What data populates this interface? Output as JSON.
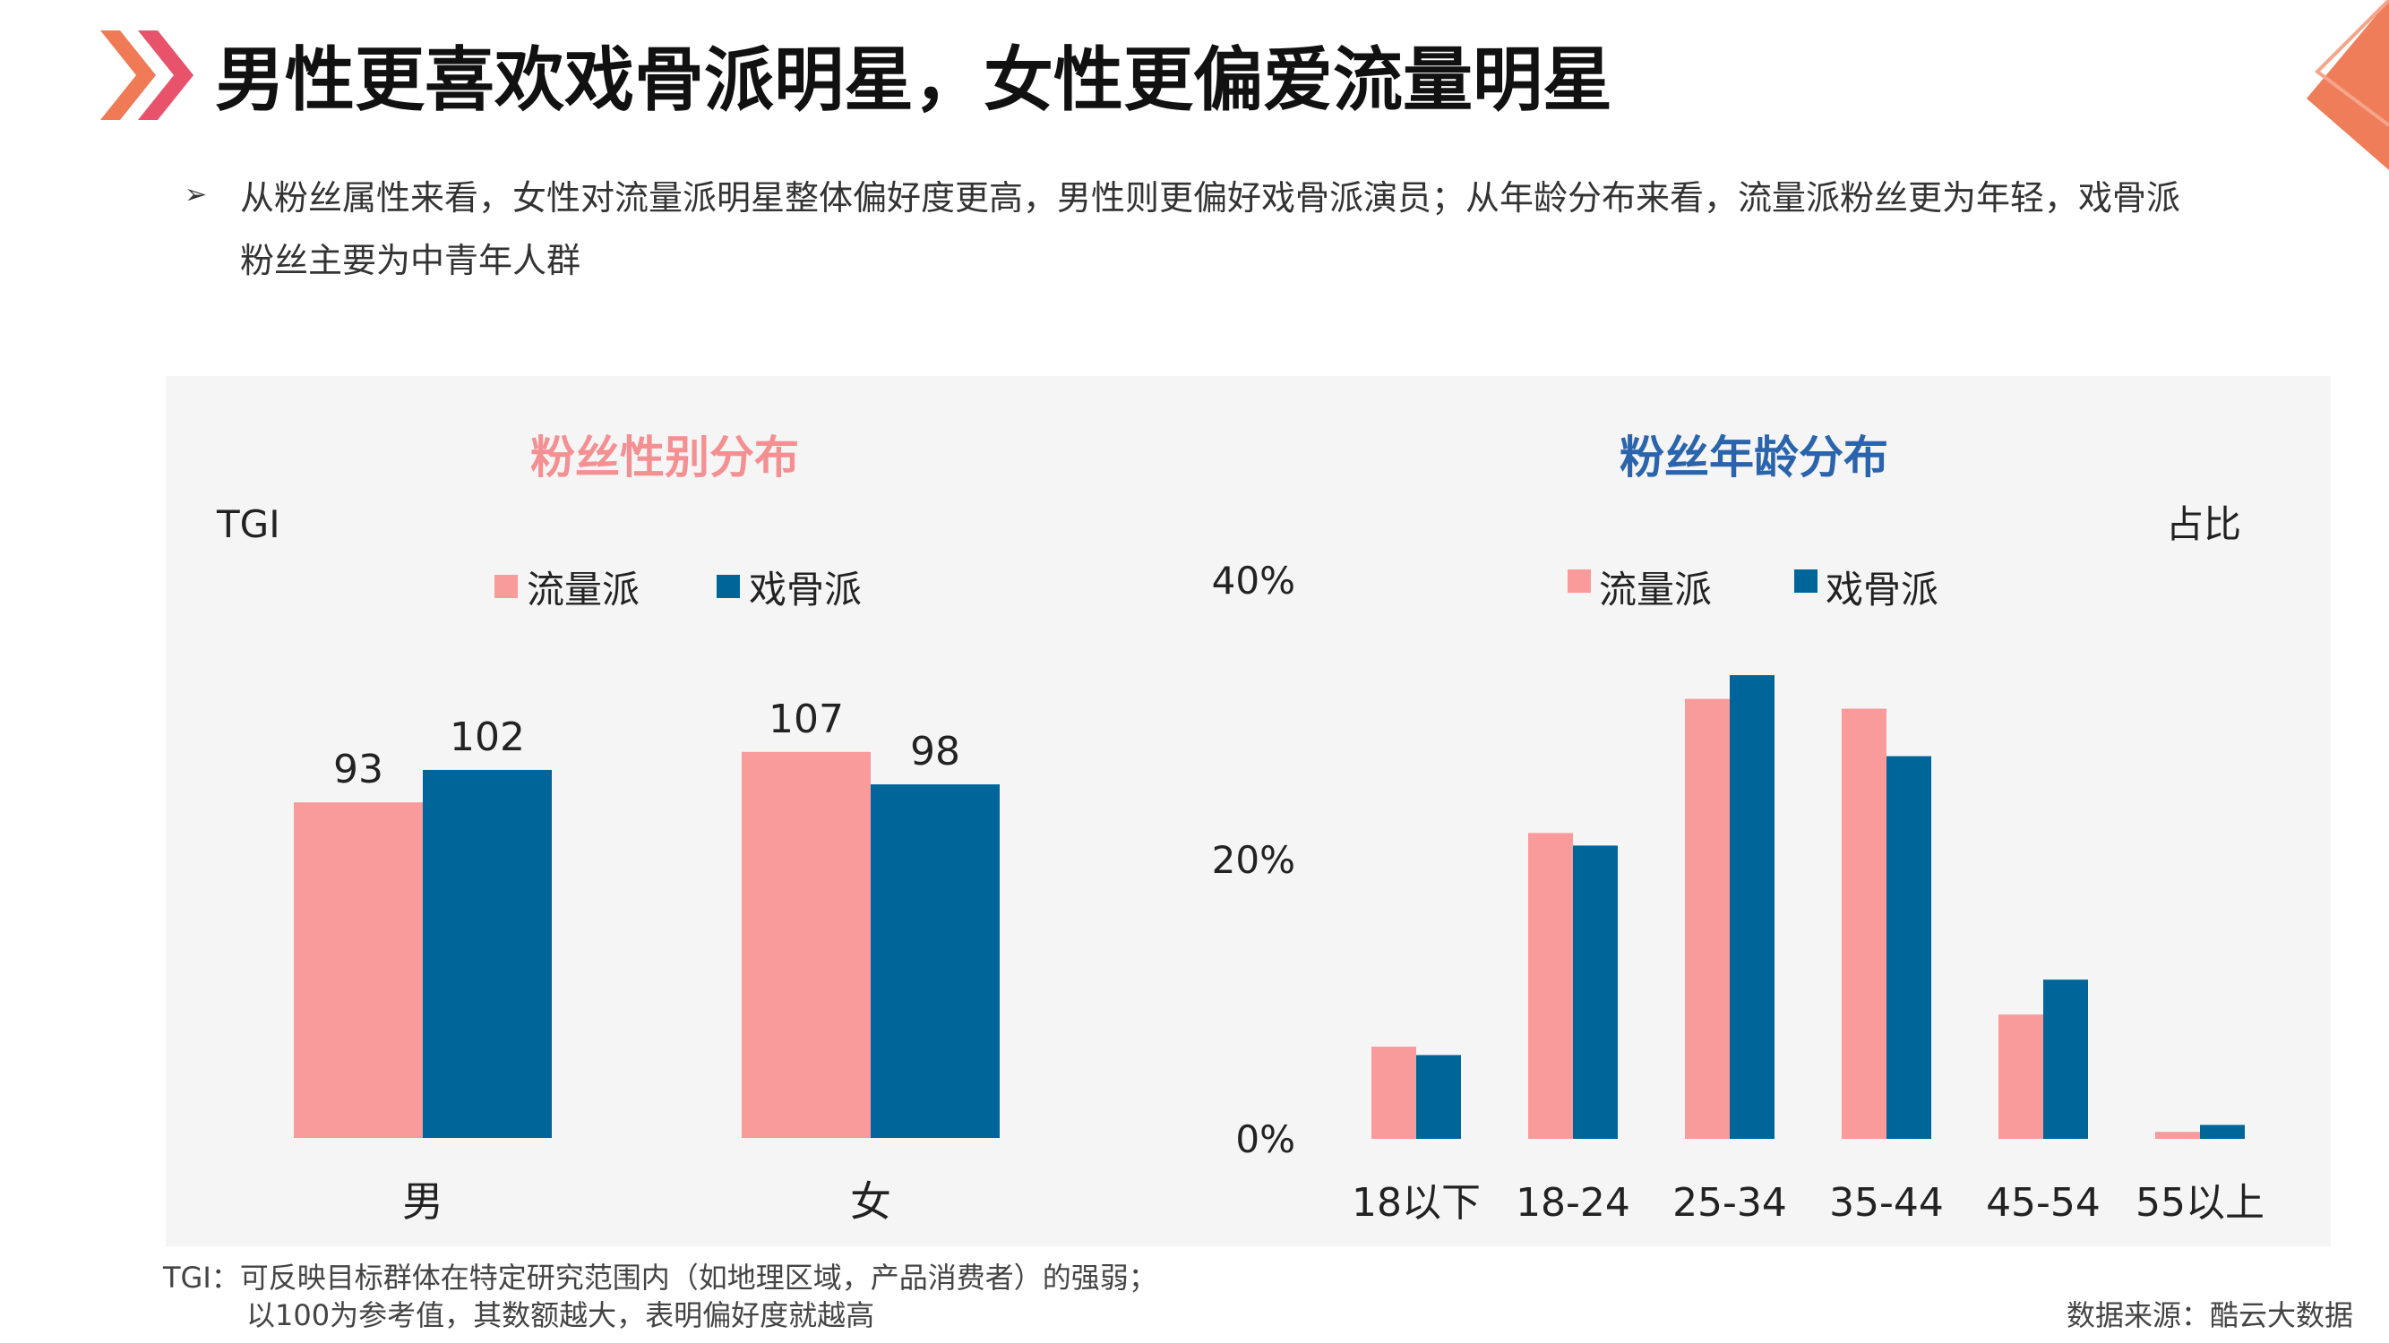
{
  "page": {
    "title": "男性更喜欢戏骨派明星，女性更偏爱流量明星",
    "intro": "从粉丝属性来看，女性对流量派明星整体偏好度更高，男性则更偏好戏骨派演员；从年龄分布来看，流量派粉丝更为年轻，戏骨派粉丝主要为中青年人群",
    "footnote_line1": "TGI：可反映目标群体在特定研究范围内（如地理区域，产品消费者）的强弱；",
    "footnote_line2": "以100为参考值，其数额越大，表明偏好度就越高",
    "source": "数据来源：酷云大数据"
  },
  "colors": {
    "pink": "#f99a9b",
    "blue": "#00669a",
    "gender_title": "#f48f92",
    "age_title": "#2a64ac",
    "panel_bg": "#f5f5f5"
  },
  "chart_data": [
    {
      "type": "bar",
      "title": "粉丝性别分布",
      "ylabel": "TGI",
      "categories": [
        "男",
        "女"
      ],
      "series": [
        {
          "name": "流量派",
          "values": [
            93,
            107
          ]
        },
        {
          "name": "戏骨派",
          "values": [
            102,
            98
          ]
        }
      ],
      "ylim": [
        0,
        110
      ],
      "data_labels": true,
      "legend": "top"
    },
    {
      "type": "bar",
      "title": "粉丝年龄分布",
      "ylabel": "占比",
      "categories": [
        "18以下",
        "18-24",
        "25-34",
        "35-44",
        "45-54",
        "55以上"
      ],
      "series": [
        {
          "name": "流量派",
          "values": [
            6.6,
            21.9,
            31.5,
            30.8,
            8.9,
            0.5
          ]
        },
        {
          "name": "戏骨派",
          "values": [
            6.0,
            21.0,
            33.2,
            27.4,
            11.4,
            1.0
          ]
        }
      ],
      "yticks": [
        "0%",
        "20%",
        "40%"
      ],
      "ylim": [
        0,
        40
      ],
      "legend": "top"
    }
  ]
}
